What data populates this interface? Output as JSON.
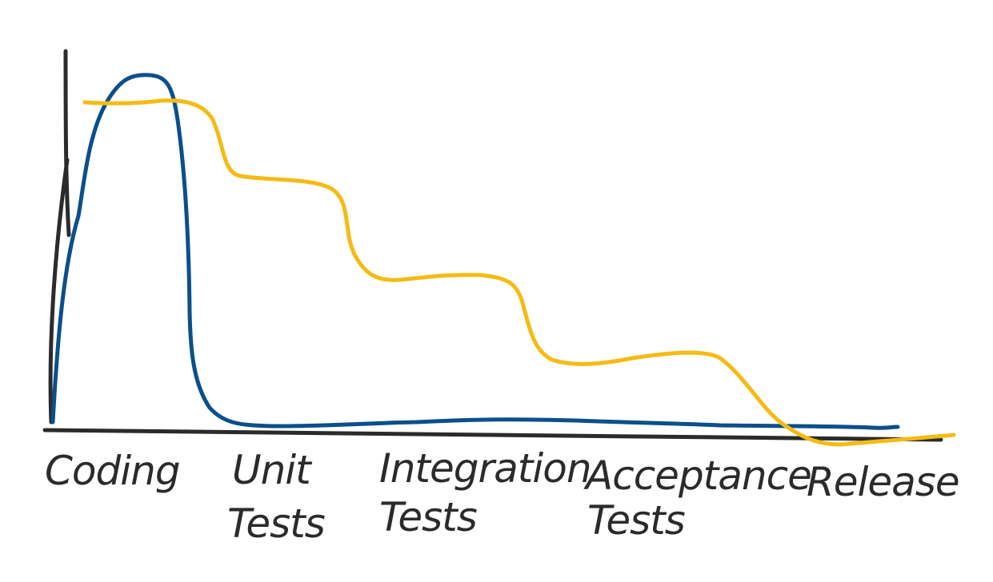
{
  "colors": {
    "axis": "#2b2b2b",
    "blue_curve": "#0b4f8c",
    "yellow_curve": "#f5bb14",
    "label": "#2b2b2b"
  },
  "stages": [
    {
      "id": "coding",
      "lines": [
        "Coding"
      ]
    },
    {
      "id": "unit-tests",
      "lines": [
        "Unit",
        "Tests"
      ]
    },
    {
      "id": "integration-tests",
      "lines": [
        "Integration",
        "Tests"
      ]
    },
    {
      "id": "acceptance-tests",
      "lines": [
        "Acceptance",
        "Tests"
      ]
    },
    {
      "id": "release",
      "lines": [
        "Release"
      ]
    }
  ]
}
